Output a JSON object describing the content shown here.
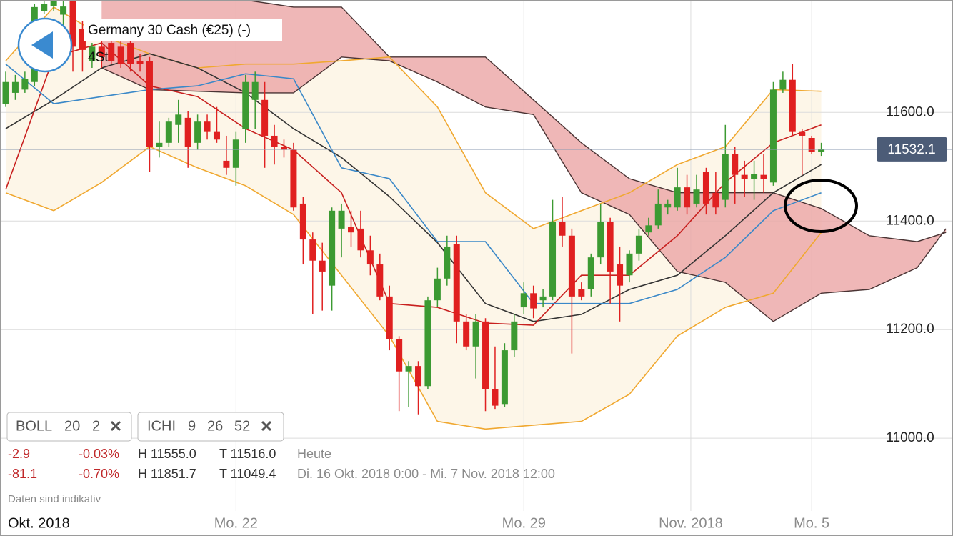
{
  "chart_data": {
    "type": "candlestick",
    "title": "Germany 30 Cash (€25) (-)",
    "subtitle": "4St",
    "xlim": [
      -0.596,
      98.73
    ],
    "ylim": [
      10866,
      11807
    ],
    "yticks": [
      {
        "value": 11000,
        "label": "11000.0"
      },
      {
        "value": 11200,
        "label": "11200.0"
      },
      {
        "value": 11400,
        "label": "11400.0"
      },
      {
        "value": 11600,
        "label": "11600.0"
      }
    ],
    "xticks": [
      {
        "value": 24,
        "label": "Mo. 22"
      },
      {
        "value": 54,
        "label": "Mo. 29"
      },
      {
        "value": 71.4,
        "label": "Nov. 2018"
      },
      {
        "value": 84,
        "label": "Mo. 5"
      }
    ],
    "grid": true,
    "up_color": "#3c9a32",
    "down_color": "#e02020",
    "x": [
      0,
      1,
      2,
      3,
      4,
      5,
      6,
      7,
      8,
      9,
      10,
      11,
      12,
      13,
      14,
      15,
      16,
      17,
      18,
      19,
      20,
      21,
      22,
      23,
      24,
      25,
      26,
      27,
      28,
      29,
      30,
      31,
      32,
      33,
      34,
      35,
      36,
      37,
      38,
      39,
      40,
      41,
      42,
      43,
      44,
      45,
      46,
      47,
      48,
      49,
      50,
      51,
      52,
      53,
      54,
      55,
      56,
      57,
      58,
      59,
      60,
      61,
      62,
      63,
      64,
      65,
      66,
      67,
      68,
      69,
      70,
      71,
      72,
      73,
      74,
      75,
      76,
      77,
      78,
      79,
      80,
      81,
      82,
      83,
      84,
      85
    ],
    "open": [
      11616,
      11636,
      11642,
      11656,
      11787,
      11796,
      11780,
      11807,
      11754,
      11695,
      11721,
      11728,
      11721,
      11728,
      11695,
      11695,
      11537,
      11544,
      11577,
      11590,
      11544,
      11583,
      11564,
      11511,
      11498,
      11570,
      11623,
      11623,
      11557,
      11537,
      11531,
      11432,
      11366,
      11327,
      11281,
      11386,
      11389,
      11386,
      11346,
      11320,
      11261,
      11182,
      11123,
      11133,
      11096,
      11254,
      11294,
      11357,
      11215,
      11169,
      11215,
      11090,
      11063,
      11162,
      11241,
      11267,
      11254,
      11261,
      11399,
      11373,
      11274,
      11274,
      11333,
      11399,
      11320,
      11300,
      11340,
      11379,
      11392,
      11425,
      11425,
      11462,
      11432,
      11491,
      11452,
      11439,
      11524,
      11485,
      11478,
      11485,
      11471,
      11642,
      11660,
      11564,
      11553,
      11528
    ],
    "high": [
      11675,
      11669,
      11675,
      11800,
      11807,
      11807,
      11807,
      11807,
      11768,
      11728,
      11741,
      11741,
      11741,
      11741,
      11708,
      11702,
      11583,
      11590,
      11623,
      11603,
      11596,
      11596,
      11610,
      11557,
      11564,
      11669,
      11675,
      11656,
      11577,
      11550,
      11544,
      11445,
      11379,
      11360,
      11425,
      11432,
      11419,
      11419,
      11373,
      11340,
      11281,
      11188,
      11142,
      11142,
      11261,
      11314,
      11373,
      11373,
      11228,
      11228,
      11221,
      11169,
      11175,
      11228,
      11287,
      11281,
      11274,
      11439,
      11445,
      11386,
      11287,
      11340,
      11432,
      11406,
      11353,
      11346,
      11386,
      11406,
      11458,
      11439,
      11498,
      11485,
      11485,
      11498,
      11491,
      11577,
      11537,
      11511,
      11511,
      11524,
      11656,
      11675,
      11689,
      11570,
      11557,
      11544
    ],
    "low": [
      11610,
      11623,
      11636,
      11649,
      11781,
      11787,
      11754,
      11675,
      11675,
      11682,
      11682,
      11689,
      11682,
      11675,
      11675,
      11491,
      11517,
      11537,
      11544,
      11498,
      11531,
      11550,
      11544,
      11485,
      11465,
      11544,
      11570,
      11498,
      11504,
      11517,
      11419,
      11320,
      11228,
      11235,
      11235,
      11333,
      11353,
      11333,
      11300,
      11254,
      11162,
      11050,
      11057,
      11044,
      11090,
      11241,
      11281,
      11175,
      11162,
      11110,
      11050,
      11054,
      11057,
      11149,
      11228,
      11221,
      11241,
      11254,
      11353,
      11156,
      11254,
      11261,
      11320,
      11248,
      11215,
      11287,
      11327,
      11373,
      11386,
      11412,
      11419,
      11412,
      11425,
      11412,
      11412,
      11425,
      11432,
      11445,
      11439,
      11452,
      11465,
      11636,
      11557,
      11485,
      11524,
      11520
    ],
    "close": [
      11656,
      11656,
      11662,
      11794,
      11800,
      11807,
      11795,
      11721,
      11715,
      11721,
      11702,
      11695,
      11689,
      11689,
      11689,
      11537,
      11544,
      11583,
      11596,
      11537,
      11583,
      11564,
      11550,
      11498,
      11550,
      11656,
      11656,
      11557,
      11537,
      11531,
      11425,
      11366,
      11327,
      11307,
      11419,
      11419,
      11379,
      11346,
      11320,
      11261,
      11182,
      11123,
      11133,
      11096,
      11254,
      11294,
      11353,
      11215,
      11169,
      11215,
      11090,
      11060,
      11162,
      11215,
      11267,
      11239,
      11261,
      11399,
      11373,
      11261,
      11261,
      11333,
      11399,
      11307,
      11281,
      11340,
      11373,
      11392,
      11432,
      11432,
      11462,
      11425,
      11458,
      11432,
      11425,
      11524,
      11485,
      11478,
      11487,
      11478,
      11642,
      11660,
      11564,
      11557,
      11528,
      11532.1
    ],
    "last_price": 11532.1,
    "bollinger": {
      "x": [
        0,
        5,
        10,
        15,
        20,
        25,
        30,
        35,
        40,
        45,
        50,
        55,
        60,
        65,
        70,
        75,
        80,
        85
      ],
      "upper": [
        11695,
        11794,
        11741,
        11708,
        11682,
        11689,
        11689,
        11695,
        11702,
        11610,
        11452,
        11386,
        11419,
        11452,
        11504,
        11537,
        11642,
        11639
      ],
      "lower": [
        11452,
        11419,
        11471,
        11537,
        11498,
        11465,
        11412,
        11300,
        11188,
        11031,
        11017,
        11024,
        11031,
        11081,
        11188,
        11241,
        11267,
        11379
      ],
      "color": "#f0a830",
      "fill": "#fdf6e8"
    },
    "lines": [
      {
        "color": "#333333",
        "x": [
          0,
          5,
          10,
          15,
          20,
          25,
          30,
          35,
          40,
          45,
          50,
          55,
          60,
          65,
          70,
          75,
          80,
          85
        ],
        "values": [
          11570,
          11623,
          11682,
          11708,
          11682,
          11636,
          11570,
          11517,
          11445,
          11360,
          11248,
          11215,
          11228,
          11274,
          11300,
          11373,
          11452,
          11504
        ]
      },
      {
        "color": "#c8201f",
        "x": [
          0,
          5,
          10,
          15,
          20,
          25,
          30,
          35,
          40,
          45,
          50,
          55,
          60,
          65,
          70,
          75,
          80,
          85
        ],
        "values": [
          11458,
          11702,
          11728,
          11649,
          11629,
          11570,
          11531,
          11452,
          11248,
          11241,
          11212,
          11208,
          11300,
          11300,
          11373,
          11471,
          11544,
          11577
        ]
      },
      {
        "color": "#3a88c8",
        "x": [
          0,
          5,
          10,
          15,
          20,
          25,
          30,
          35,
          40,
          45,
          50,
          55,
          60,
          65,
          70,
          75,
          80,
          85
        ],
        "values": [
          11689,
          11616,
          11629,
          11642,
          11649,
          11671,
          11662,
          11498,
          11478,
          11362,
          11362,
          11248,
          11248,
          11248,
          11274,
          11333,
          11419,
          11452
        ]
      }
    ],
    "cloud": {
      "x": [
        10,
        15,
        20,
        25,
        30,
        35,
        40,
        45,
        50,
        55,
        60,
        65,
        70,
        75,
        80,
        85,
        90,
        95,
        98
      ],
      "span_a": [
        11807,
        11807,
        11807,
        11807,
        11794,
        11794,
        11702,
        11702,
        11702,
        11623,
        11544,
        11478,
        11452,
        11452,
        11452,
        11423,
        11373,
        11362,
        11379
      ],
      "span_b": [
        11682,
        11642,
        11639,
        11636,
        11636,
        11702,
        11695,
        11656,
        11610,
        11596,
        11452,
        11412,
        11307,
        11287,
        11215,
        11267,
        11274,
        11314,
        11386
      ],
      "fill": "#eba5a5",
      "line_color": "#4a3434"
    }
  },
  "ui": {
    "month_left": "Okt. 2018",
    "chips": [
      {
        "name": "BOLL",
        "params": [
          "20",
          "2"
        ]
      },
      {
        "name": "ICHI",
        "params": [
          "9",
          "26",
          "52"
        ]
      }
    ],
    "stats": [
      {
        "change": "-2.9",
        "change_pct": "-0.03%",
        "high": "H 11555.0",
        "low": "T 11516.0",
        "period": "Heute"
      },
      {
        "change": "-81.1",
        "change_pct": "-0.70%",
        "high": "H 11851.7",
        "low": "T 11049.4",
        "period": "Di. 16 Okt. 2018 0:00 - Mi. 7 Nov. 2018 12:00"
      }
    ],
    "disclaimer": "Daten sind indikativ"
  }
}
